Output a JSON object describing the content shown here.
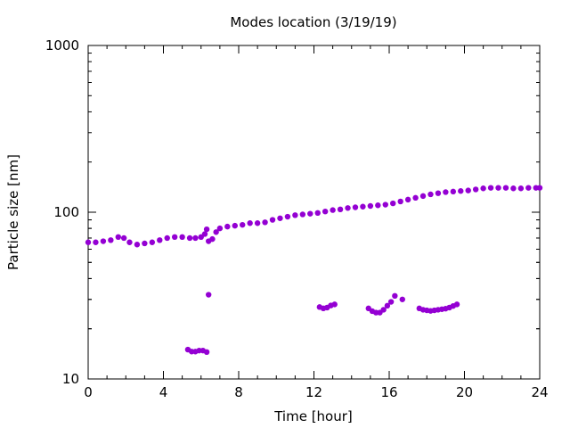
{
  "chart_data": {
    "type": "scatter",
    "title": "Modes location (3/19/19)",
    "xlabel": "Time [hour]",
    "ylabel": "Particle size [nm]",
    "xlim": [
      0,
      24
    ],
    "ylim": [
      10,
      1000
    ],
    "yscale": "log",
    "x_ticks": [
      0,
      4,
      8,
      12,
      16,
      20,
      24
    ],
    "y_ticks": [
      10,
      100,
      1000
    ],
    "x_tick_labels": [
      "0",
      "4",
      "8",
      "12",
      "16",
      "20",
      "24"
    ],
    "y_tick_labels": [
      "10",
      "100",
      "1000"
    ],
    "grid": false,
    "legend": "none",
    "marker_color": "#9400d3",
    "series": [
      {
        "points": [
          [
            0.0,
            66
          ],
          [
            0.4,
            66
          ],
          [
            0.8,
            67
          ],
          [
            1.2,
            68
          ],
          [
            1.6,
            71
          ],
          [
            1.9,
            70
          ],
          [
            2.2,
            66
          ],
          [
            2.6,
            64
          ],
          [
            3.0,
            65
          ],
          [
            3.4,
            66
          ],
          [
            3.8,
            68
          ],
          [
            4.2,
            70
          ],
          [
            4.6,
            71
          ],
          [
            5.0,
            71
          ],
          [
            5.4,
            70
          ],
          [
            5.7,
            70
          ],
          [
            6.0,
            71
          ],
          [
            6.2,
            74
          ],
          [
            6.3,
            79
          ],
          [
            6.4,
            67
          ],
          [
            6.6,
            69
          ],
          [
            6.8,
            76
          ],
          [
            7.0,
            80
          ],
          [
            7.4,
            82
          ],
          [
            7.8,
            83
          ],
          [
            8.2,
            84
          ],
          [
            8.6,
            86
          ],
          [
            9.0,
            86
          ],
          [
            9.4,
            87
          ],
          [
            9.8,
            90
          ],
          [
            10.2,
            92
          ],
          [
            10.6,
            94
          ],
          [
            11.0,
            96
          ],
          [
            11.4,
            97
          ],
          [
            11.8,
            98
          ],
          [
            12.2,
            99
          ],
          [
            12.6,
            101
          ],
          [
            13.0,
            103
          ],
          [
            13.4,
            104
          ],
          [
            13.8,
            106
          ],
          [
            14.2,
            107
          ],
          [
            14.6,
            108
          ],
          [
            15.0,
            109
          ],
          [
            15.4,
            110
          ],
          [
            15.8,
            111
          ],
          [
            16.2,
            113
          ],
          [
            16.6,
            116
          ],
          [
            17.0,
            119
          ],
          [
            17.4,
            122
          ],
          [
            17.8,
            125
          ],
          [
            18.2,
            128
          ],
          [
            18.6,
            130
          ],
          [
            19.0,
            132
          ],
          [
            19.4,
            133
          ],
          [
            19.8,
            134
          ],
          [
            20.2,
            135
          ],
          [
            20.6,
            137
          ],
          [
            21.0,
            139
          ],
          [
            21.4,
            140
          ],
          [
            21.8,
            140
          ],
          [
            22.2,
            140
          ],
          [
            22.6,
            139
          ],
          [
            23.0,
            139
          ],
          [
            23.4,
            140
          ],
          [
            23.8,
            140
          ],
          [
            24.0,
            140
          ]
        ]
      },
      {
        "points": [
          [
            5.3,
            15
          ],
          [
            5.5,
            14.6
          ],
          [
            5.7,
            14.6
          ],
          [
            5.9,
            14.8
          ],
          [
            6.1,
            14.8
          ],
          [
            6.3,
            14.5
          ],
          [
            6.4,
            32
          ],
          [
            12.3,
            27
          ],
          [
            12.5,
            26.5
          ],
          [
            12.7,
            26.8
          ],
          [
            12.9,
            27.6
          ],
          [
            13.1,
            28
          ],
          [
            14.9,
            26.5
          ],
          [
            15.1,
            25.5
          ],
          [
            15.3,
            25
          ],
          [
            15.5,
            25
          ],
          [
            15.7,
            26
          ],
          [
            15.9,
            27.5
          ],
          [
            16.1,
            29
          ],
          [
            16.3,
            31.5
          ],
          [
            16.7,
            30
          ],
          [
            17.6,
            26.5
          ],
          [
            17.8,
            26
          ],
          [
            18.0,
            25.8
          ],
          [
            18.2,
            25.6
          ],
          [
            18.4,
            25.8
          ],
          [
            18.6,
            26
          ],
          [
            18.8,
            26.2
          ],
          [
            19.0,
            26.4
          ],
          [
            19.2,
            26.8
          ],
          [
            19.4,
            27.4
          ],
          [
            19.6,
            28
          ]
        ]
      }
    ]
  }
}
